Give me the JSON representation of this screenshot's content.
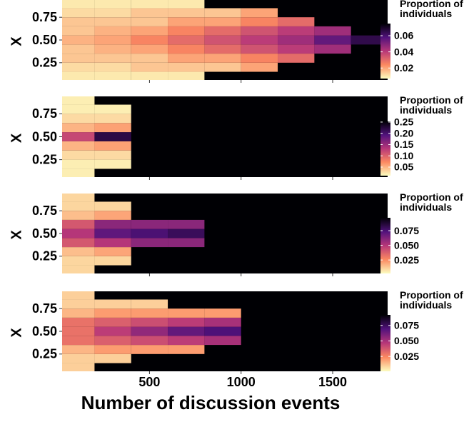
{
  "chart_data": [
    {
      "type": "heatmap",
      "ylabel": "X",
      "colorbar_title": "Proportion of individuals",
      "xlim": [
        23,
        1800
      ],
      "ylim": [
        0.06,
        0.94
      ],
      "xticks": [
        500,
        1000,
        1500
      ],
      "yticks": [
        0.25,
        {
          "value": 0.5,
          "label": "0.50"
        },
        0.75
      ],
      "xbins": [
        23,
        200,
        400,
        600,
        800,
        1000,
        1200,
        1400,
        1600,
        1800
      ],
      "ybins": [
        0.06,
        0.15,
        0.25,
        0.35,
        0.45,
        0.55,
        0.65,
        0.75,
        0.85,
        0.94
      ],
      "values": [
        [
          0.01,
          0.01,
          0.01,
          0.01,
          null,
          null,
          null,
          null,
          null
        ],
        [
          0.012,
          0.012,
          0.015,
          0.015,
          0.015,
          0.02,
          null,
          null,
          null
        ],
        [
          0.015,
          0.015,
          0.015,
          0.02,
          0.02,
          0.025,
          0.03,
          null,
          null
        ],
        [
          0.015,
          0.018,
          0.02,
          0.025,
          0.03,
          0.035,
          0.04,
          0.045,
          null
        ],
        [
          0.018,
          0.02,
          0.025,
          0.03,
          0.035,
          0.04,
          0.045,
          0.055,
          0.065
        ],
        [
          0.015,
          0.018,
          0.02,
          0.025,
          0.03,
          0.035,
          0.04,
          0.045,
          null
        ],
        [
          0.015,
          0.015,
          0.015,
          0.02,
          0.02,
          0.025,
          0.03,
          null,
          null
        ],
        [
          0.012,
          0.012,
          0.015,
          0.015,
          0.015,
          0.02,
          null,
          null,
          null
        ],
        [
          0.01,
          0.01,
          0.01,
          0.01,
          null,
          null,
          null,
          null,
          null
        ]
      ],
      "clim": [
        0.007,
        0.075
      ],
      "cticks": [
        0.02,
        0.04,
        0.06
      ],
      "colors": [
        "#fcfdbf",
        "#fc8961",
        "#b73779",
        "#51127c",
        "#000004"
      ]
    },
    {
      "type": "heatmap",
      "ylabel": "X",
      "colorbar_title": "Proportion of individuals",
      "xlim": [
        23,
        1800
      ],
      "ylim": [
        0.06,
        0.94
      ],
      "xticks": [
        500,
        1000,
        1500
      ],
      "yticks": [
        0.25,
        {
          "value": 0.5,
          "label": "0.50"
        },
        0.75
      ],
      "xbins": [
        23,
        200,
        400,
        600,
        800,
        1000,
        1200,
        1400,
        1600,
        1800
      ],
      "ybins": [
        0.06,
        0.15,
        0.25,
        0.35,
        0.45,
        0.55,
        0.65,
        0.75,
        0.85,
        0.94
      ],
      "values": [
        [
          0.02,
          null,
          null,
          null,
          null,
          null,
          null,
          null,
          null
        ],
        [
          0.02,
          0.02,
          null,
          null,
          null,
          null,
          null,
          null,
          null
        ],
        [
          0.03,
          0.03,
          null,
          null,
          null,
          null,
          null,
          null,
          null
        ],
        [
          0.05,
          0.06,
          null,
          null,
          null,
          null,
          null,
          null,
          null
        ],
        [
          0.12,
          0.22,
          null,
          null,
          null,
          null,
          null,
          null,
          null
        ],
        [
          0.05,
          0.06,
          null,
          null,
          null,
          null,
          null,
          null,
          null
        ],
        [
          0.03,
          0.03,
          null,
          null,
          null,
          null,
          null,
          null,
          null
        ],
        [
          0.02,
          0.02,
          null,
          null,
          null,
          null,
          null,
          null,
          null
        ],
        [
          0.02,
          null,
          null,
          null,
          null,
          null,
          null,
          null,
          null
        ]
      ],
      "clim": [
        0.012,
        0.253
      ],
      "cticks": [
        0.05,
        {
          "value": 0.1,
          "label": "0.10"
        },
        0.15,
        {
          "value": 0.2,
          "label": "0.20"
        },
        0.25
      ],
      "colors": [
        "#fcfdbf",
        "#fc8961",
        "#b73779",
        "#51127c",
        "#000004"
      ]
    },
    {
      "type": "heatmap",
      "ylabel": "X",
      "colorbar_title": "Proportion of individuals",
      "xlim": [
        23,
        1800
      ],
      "ylim": [
        0.06,
        0.94
      ],
      "xticks": [
        500,
        1000,
        1500
      ],
      "yticks": [
        0.25,
        {
          "value": 0.5,
          "label": "0.50"
        },
        0.75
      ],
      "xbins": [
        23,
        200,
        400,
        600,
        800,
        1000,
        1200,
        1400,
        1600,
        1800
      ],
      "ybins": [
        0.06,
        0.15,
        0.25,
        0.35,
        0.45,
        0.55,
        0.65,
        0.75,
        0.85,
        0.94
      ],
      "values": [
        [
          0.01,
          null,
          null,
          null,
          null,
          null,
          null,
          null,
          null
        ],
        [
          0.01,
          0.01,
          null,
          null,
          null,
          null,
          null,
          null,
          null
        ],
        [
          0.015,
          0.02,
          null,
          null,
          null,
          null,
          null,
          null,
          null
        ],
        [
          0.04,
          0.05,
          0.06,
          0.06,
          null,
          null,
          null,
          null,
          null
        ],
        [
          0.05,
          0.07,
          0.075,
          0.08,
          null,
          null,
          null,
          null,
          null
        ],
        [
          0.04,
          0.06,
          0.06,
          0.06,
          null,
          null,
          null,
          null,
          null
        ],
        [
          0.015,
          0.02,
          null,
          null,
          null,
          null,
          null,
          null,
          null
        ],
        [
          0.01,
          0.01,
          null,
          null,
          null,
          null,
          null,
          null,
          null
        ],
        [
          0.01,
          null,
          null,
          null,
          null,
          null,
          null,
          null,
          null
        ]
      ],
      "clim": [
        0.002,
        0.097
      ],
      "cticks": [
        0.025,
        {
          "value": 0.05,
          "label": "0.050"
        },
        0.075
      ],
      "colors": [
        "#fcfdbf",
        "#fc8961",
        "#b73779",
        "#51127c",
        "#000004"
      ]
    },
    {
      "type": "heatmap",
      "ylabel": "X",
      "colorbar_title": "Proportion of individuals",
      "xlabel": "Number of discussion events",
      "xlim": [
        23,
        1800
      ],
      "ylim": [
        0.06,
        0.94
      ],
      "xticks": [
        500,
        1000,
        1500
      ],
      "yticks": [
        0.25,
        {
          "value": 0.5,
          "label": "0.50"
        },
        0.75
      ],
      "xbins": [
        23,
        200,
        400,
        600,
        800,
        1000,
        1200,
        1400,
        1600,
        1800
      ],
      "ybins": [
        0.06,
        0.15,
        0.25,
        0.35,
        0.45,
        0.55,
        0.65,
        0.75,
        0.85,
        0.94
      ],
      "values": [
        [
          0.01,
          null,
          null,
          null,
          null,
          null,
          null,
          null,
          null
        ],
        [
          0.01,
          0.01,
          null,
          null,
          null,
          null,
          null,
          null,
          null
        ],
        [
          0.015,
          0.02,
          0.02,
          0.02,
          null,
          null,
          null,
          null,
          null
        ],
        [
          0.03,
          0.035,
          0.04,
          0.045,
          0.05,
          null,
          null,
          null,
          null
        ],
        [
          0.03,
          0.045,
          0.055,
          0.065,
          0.07,
          null,
          null,
          null,
          null
        ],
        [
          0.03,
          0.035,
          0.04,
          0.045,
          0.05,
          null,
          null,
          null,
          null
        ],
        [
          0.015,
          0.02,
          0.02,
          0.02,
          0.02,
          null,
          null,
          null,
          null
        ],
        [
          0.01,
          0.01,
          0.01,
          null,
          null,
          null,
          null,
          null,
          null
        ],
        [
          0.01,
          null,
          null,
          null,
          null,
          null,
          null,
          null,
          null
        ]
      ],
      "clim": [
        0.001,
        0.092
      ],
      "cticks": [
        0.025,
        {
          "value": 0.05,
          "label": "0.050"
        },
        0.075
      ],
      "colors": [
        "#fcfdbf",
        "#fc8961",
        "#b73779",
        "#51127c",
        "#000004"
      ]
    }
  ]
}
